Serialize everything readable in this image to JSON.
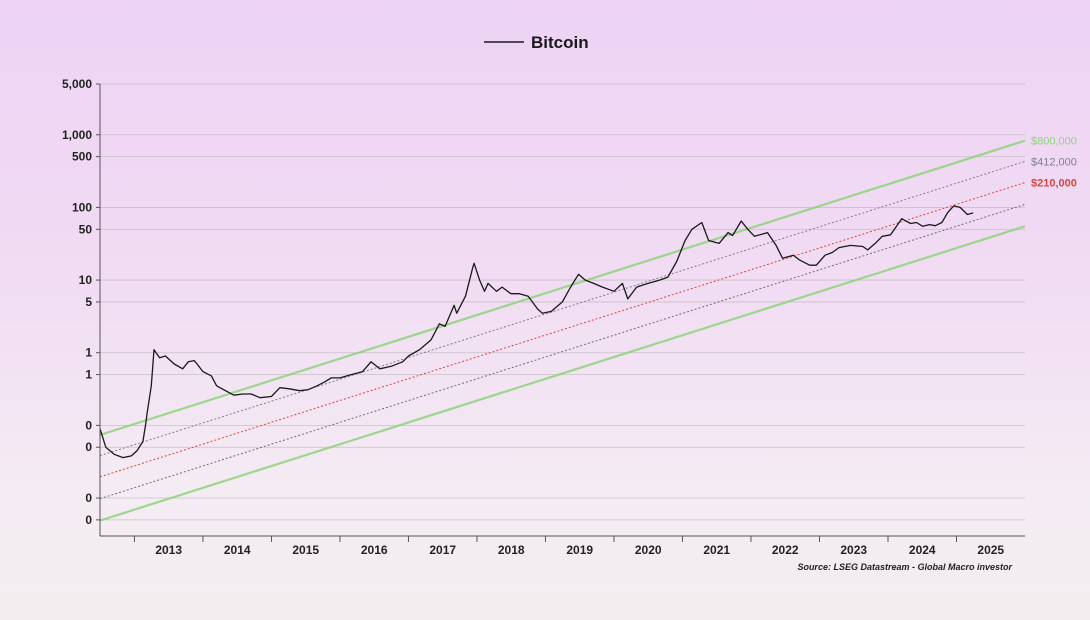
{
  "chart_data": {
    "type": "line",
    "legend": {
      "entries": [
        "Bitcoin"
      ],
      "placement": "top-center"
    },
    "y_scale": "log",
    "y_tick_labels": [
      "5,000",
      "1,000",
      "500",
      "100",
      "50",
      "10",
      "5",
      "1",
      "1",
      "0",
      "0",
      "0",
      "0"
    ],
    "y_tick_values": [
      5000,
      1000,
      500,
      100,
      50,
      10,
      5,
      1,
      0.5,
      0.1,
      0.05,
      0.01,
      0.005
    ],
    "ylim": [
      0.003,
      5000
    ],
    "x_tick_labels": [
      "2013",
      "2014",
      "2015",
      "2016",
      "2017",
      "2018",
      "2019",
      "2020",
      "2021",
      "2022",
      "2023",
      "2024",
      "2025"
    ],
    "xlim": [
      "2012-07-01",
      "2025-12-31"
    ],
    "grid": "horizontal",
    "series": [
      {
        "name": "Bitcoin",
        "color": "#1a1a1a",
        "x": [
          "2012-07-01",
          "2012-08-01",
          "2012-09-15",
          "2012-11-01",
          "2012-12-15",
          "2013-01-15",
          "2013-02-15",
          "2013-03-01",
          "2013-03-10",
          "2013-04-01",
          "2013-04-15",
          "2013-05-15",
          "2013-06-15",
          "2013-08-01",
          "2013-09-15",
          "2013-10-15",
          "2013-11-15",
          "2013-12-01",
          "2014-01-01",
          "2014-02-15",
          "2014-03-15",
          "2014-05-01",
          "2014-06-15",
          "2014-08-01",
          "2014-09-15",
          "2014-11-01",
          "2015-01-01",
          "2015-02-15",
          "2015-04-01",
          "2015-06-01",
          "2015-07-15",
          "2015-09-01",
          "2015-10-15",
          "2015-11-15",
          "2016-01-01",
          "2016-03-01",
          "2016-05-01",
          "2016-06-15",
          "2016-08-01",
          "2016-10-01",
          "2016-12-01",
          "2017-01-01",
          "2017-03-01",
          "2017-05-01",
          "2017-06-15",
          "2017-07-15",
          "2017-09-01",
          "2017-09-15",
          "2017-11-01",
          "2017-12-10",
          "2017-12-17",
          "2018-01-15",
          "2018-02-10",
          "2018-03-01",
          "2018-04-15",
          "2018-05-15",
          "2018-07-01",
          "2018-08-15",
          "2018-10-01",
          "2018-11-20",
          "2018-12-15",
          "2019-02-01",
          "2019-04-01",
          "2019-05-15",
          "2019-06-26",
          "2019-08-01",
          "2019-09-15",
          "2019-11-01",
          "2020-01-01",
          "2020-02-15",
          "2020-03-15",
          "2020-05-01",
          "2020-07-01",
          "2020-09-01",
          "2020-10-15",
          "2020-12-01",
          "2021-01-15",
          "2021-02-20",
          "2021-04-14",
          "2021-05-20",
          "2021-07-15",
          "2021-09-01",
          "2021-09-25",
          "2021-11-10",
          "2021-12-15",
          "2022-01-20",
          "2022-03-30",
          "2022-05-15",
          "2022-06-18",
          "2022-08-15",
          "2022-09-15",
          "2022-11-10",
          "2022-12-15",
          "2023-01-31",
          "2023-03-10",
          "2023-04-15",
          "2023-06-15",
          "2023-08-20",
          "2023-09-15",
          "2023-10-25",
          "2023-12-01",
          "2024-01-15",
          "2024-03-14",
          "2024-05-01",
          "2024-06-01",
          "2024-07-05",
          "2024-08-10",
          "2024-09-10",
          "2024-10-15",
          "2024-11-15",
          "2024-12-17",
          "2025-01-20",
          "2025-02-28",
          "2025-03-31"
        ],
        "values": [
          0.09,
          0.05,
          0.04,
          0.036,
          0.038,
          0.045,
          0.06,
          0.1,
          0.15,
          0.35,
          1.1,
          0.85,
          0.9,
          0.7,
          0.6,
          0.75,
          0.78,
          0.7,
          0.55,
          0.48,
          0.35,
          0.3,
          0.26,
          0.27,
          0.27,
          0.24,
          0.25,
          0.33,
          0.32,
          0.3,
          0.31,
          0.35,
          0.4,
          0.45,
          0.45,
          0.5,
          0.55,
          0.75,
          0.6,
          0.65,
          0.75,
          0.9,
          1.1,
          1.5,
          2.5,
          2.3,
          4.5,
          3.5,
          6,
          15,
          17,
          10,
          7,
          9,
          7,
          8,
          6.5,
          6.5,
          6,
          4,
          3.5,
          3.7,
          5,
          8,
          12,
          10,
          9,
          8,
          7,
          9,
          5.5,
          8,
          9,
          10,
          11,
          18,
          35,
          50,
          62,
          35,
          32,
          45,
          41,
          65,
          50,
          40,
          45,
          30,
          20,
          22,
          19,
          16,
          16,
          22,
          24,
          28,
          30,
          29,
          26,
          32,
          40,
          42,
          70,
          60,
          62,
          55,
          58,
          56,
          62,
          85,
          105,
          100,
          80,
          84
        ]
      }
    ],
    "bands": [
      {
        "label": "$800,000",
        "color": "#8ed47c",
        "at_2025_end": 830,
        "slope_log_per_year": 0.3
      },
      {
        "label": "$412,000",
        "color": "#7f7f8a",
        "at_2025_end": 430,
        "slope_log_per_year": 0.3
      },
      {
        "label": "$210,000",
        "color": "#d9463e",
        "at_2025_end": 220,
        "slope_log_per_year": 0.3
      },
      {
        "label": "",
        "color": "#6e6e78",
        "at_2025_end": 110,
        "slope_log_per_year": 0.3
      },
      {
        "label": "",
        "color": "#8ed47c",
        "at_2025_end": 55,
        "slope_log_per_year": 0.3
      }
    ],
    "source": "Source: LSEG Datastream - Global Macro investor"
  }
}
